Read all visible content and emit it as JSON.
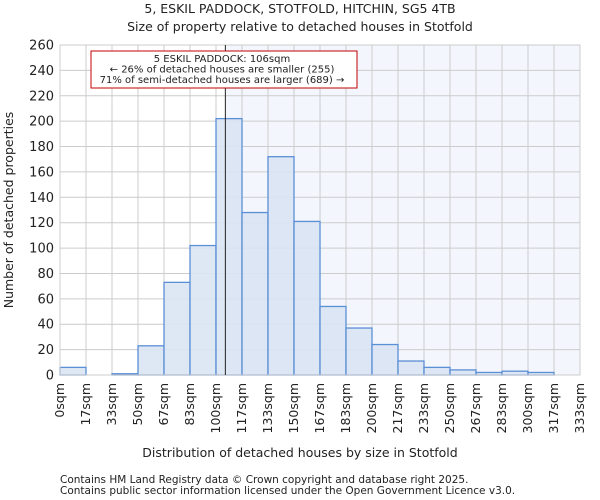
{
  "chart_data": {
    "type": "bar",
    "title": "5, ESKIL PADDOCK, STOTFOLD, HITCHIN, SG5 4TB",
    "subtitle": "Size of property relative to detached houses in Stotfold",
    "xlabel": "Distribution of detached houses by size in Stotfold",
    "ylabel": "Number of detached properties",
    "bin_edges": [
      0,
      16.67,
      33.33,
      50,
      66.67,
      83.33,
      100,
      116.67,
      133.33,
      150,
      166.67,
      183.33,
      200,
      216.67,
      233.33,
      250,
      266.67,
      283.33,
      300,
      316.67,
      333.33
    ],
    "x_tick_labels": [
      "0sqm",
      "17sqm",
      "33sqm",
      "50sqm",
      "67sqm",
      "83sqm",
      "100sqm",
      "117sqm",
      "133sqm",
      "150sqm",
      "167sqm",
      "183sqm",
      "200sqm",
      "217sqm",
      "233sqm",
      "250sqm",
      "267sqm",
      "283sqm",
      "300sqm",
      "317sqm",
      "333sqm"
    ],
    "values": [
      6,
      0,
      1,
      23,
      73,
      102,
      202,
      128,
      172,
      121,
      54,
      37,
      24,
      11,
      6,
      4,
      2,
      3,
      2,
      0
    ],
    "ylim": [
      0,
      260
    ],
    "y_ticks": [
      0,
      20,
      40,
      60,
      80,
      100,
      120,
      140,
      160,
      180,
      200,
      220,
      240,
      260
    ],
    "grid": true,
    "marker_value": 106,
    "annotation": {
      "line1": "5 ESKIL PADDOCK: 106sqm",
      "line2": "← 26% of detached houses are smaller (255)",
      "line3": "71% of semi-detached houses are larger (689) →"
    },
    "colors": {
      "bar_fill": "#dae4f3",
      "bar_stroke": "#5b8fd6",
      "marker": "#c00000",
      "highlight_bg": "#f3f6fd",
      "grid": "#cccccc"
    }
  },
  "footer": {
    "line1": "Contains HM Land Registry data © Crown copyright and database right 2025.",
    "line2": "Contains public sector information licensed under the Open Government Licence v3.0."
  }
}
